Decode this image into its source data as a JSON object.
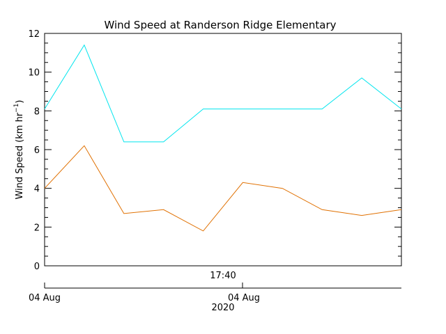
{
  "chart_data": {
    "type": "line",
    "title": "Wind Speed at Randerson Ridge Elementary",
    "ylabel": "Wind Speed (km hr",
    "ylabel_exponent": "−1",
    "ylabel_close": ")",
    "ylim": [
      0,
      12
    ],
    "yticks": [
      0,
      2,
      4,
      6,
      8,
      10,
      12
    ],
    "grid": false,
    "x": [
      0,
      1,
      2,
      3,
      4,
      5,
      6,
      7,
      8,
      9
    ],
    "xlim": [
      0,
      9
    ],
    "x_time_labels": [
      "17:40"
    ],
    "x_date_labels": [
      "04 Aug",
      "04 Aug"
    ],
    "x_year_label": "2020",
    "series": [
      {
        "color": "#00e5ee",
        "values": [
          8.1,
          11.4,
          6.4,
          6.4,
          8.1,
          8.1,
          8.1,
          8.1,
          9.7,
          8.1
        ]
      },
      {
        "color": "#e07000",
        "values": [
          4.0,
          6.2,
          2.7,
          2.9,
          1.8,
          4.3,
          4.0,
          2.9,
          2.6,
          2.9
        ]
      }
    ]
  }
}
